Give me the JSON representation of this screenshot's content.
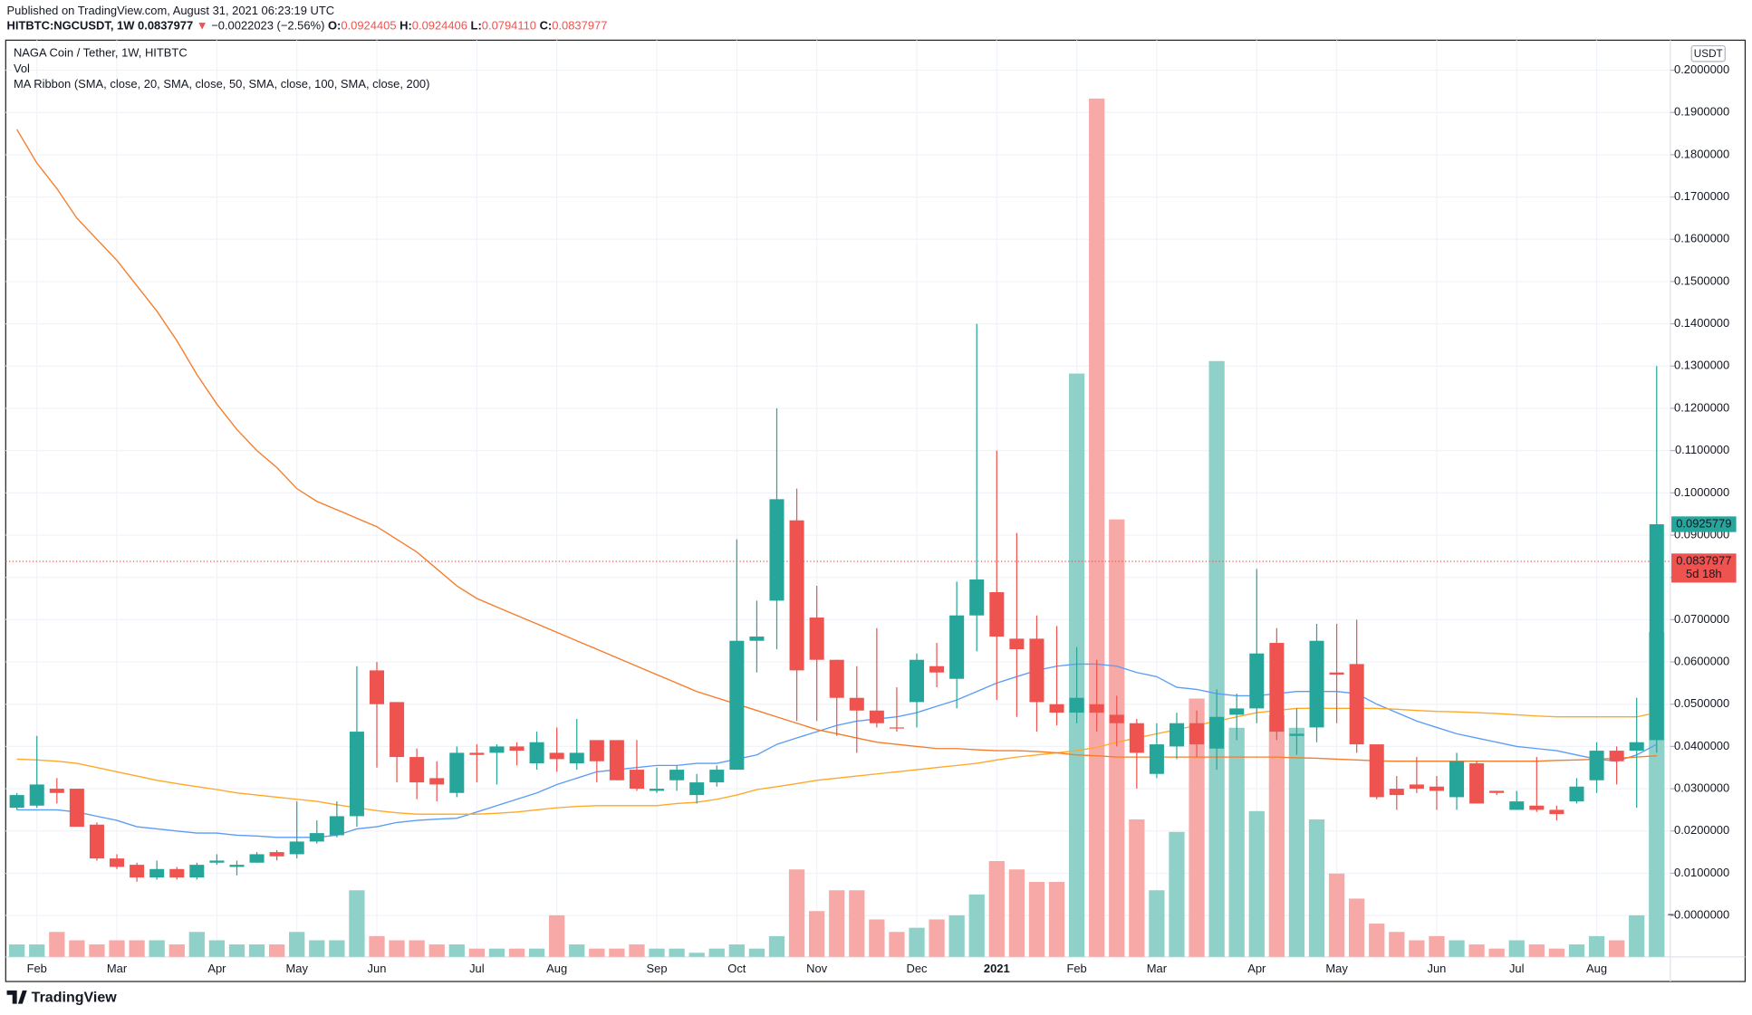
{
  "header": {
    "published": "Published on TradingView.com, August 31, 2021 06:23:19 UTC",
    "symbol": "HITBTC:NGCUSDT, 1W",
    "last": "0.0837977",
    "arrow": "▼",
    "change": "−0.0022023 (−2.56%)",
    "o_label": "O:",
    "o": "0.0924405",
    "h_label": "H:",
    "h": "0.0924406",
    "l_label": "L:",
    "l": "0.0794110",
    "c_label": "C:",
    "c": "0.0837977"
  },
  "footer": {
    "logo": "TradingView"
  },
  "chart_data": {
    "type": "candlestick",
    "title": "NAGA Coin / Tether, 1W, HITBTC",
    "indicators": [
      "Vol",
      "MA Ribbon (SMA, close, 20, SMA, close, 50, SMA, close, 100, SMA, close, 200)"
    ],
    "axis_unit": "USDT",
    "up_color": "#26a69a",
    "down_color": "#ef5350",
    "volume_up_color": "#8fd1c9",
    "volume_down_color": "#f6a9a7",
    "grid": true,
    "categories": [
      null,
      "Feb",
      null,
      null,
      null,
      "Mar",
      null,
      null,
      null,
      null,
      "Apr",
      null,
      null,
      null,
      "May",
      null,
      null,
      null,
      "Jun",
      null,
      null,
      null,
      null,
      "Jul",
      null,
      null,
      null,
      "Aug",
      null,
      null,
      null,
      null,
      "Sep",
      null,
      null,
      null,
      "Oct",
      null,
      null,
      null,
      "Nov",
      null,
      null,
      null,
      null,
      "Dec",
      null,
      null,
      null,
      "2021",
      null,
      null,
      null,
      "Feb",
      null,
      null,
      null,
      "Mar",
      null,
      null,
      null,
      null,
      "Apr",
      null,
      null,
      null,
      "May",
      null,
      null,
      null,
      null,
      "Jun",
      null,
      null,
      null,
      "Jul",
      null,
      null,
      null,
      "Aug",
      null,
      null,
      null
    ],
    "open": [
      0.0255,
      0.026,
      0.03,
      0.03,
      0.0215,
      0.0135,
      0.012,
      0.009,
      0.011,
      0.009,
      0.0125,
      0.0115,
      0.0125,
      0.015,
      0.0145,
      0.0175,
      0.019,
      0.0235,
      0.058,
      0.0505,
      0.0375,
      0.0325,
      0.029,
      0.0385,
      0.0385,
      0.04,
      0.036,
      0.0385,
      0.036,
      0.0415,
      0.0415,
      0.0345,
      0.0295,
      0.032,
      0.0285,
      0.0315,
      0.0345,
      0.065,
      0.0745,
      0.0935,
      0.0705,
      0.0605,
      0.0515,
      0.0485,
      0.0445,
      0.0505,
      0.059,
      0.056,
      0.071,
      0.0765,
      0.0655,
      0.0655,
      0.05,
      0.048,
      0.05,
      0.0475,
      0.0455,
      0.0335,
      0.04,
      0.0455,
      0.0395,
      0.0475,
      0.049,
      0.0645,
      0.0425,
      0.0445,
      0.0575,
      0.0595,
      0.0405,
      0.03,
      0.031,
      0.0305,
      0.028,
      0.036,
      0.0295,
      0.025,
      0.026,
      0.025,
      0.027,
      0.032,
      0.039,
      0.039,
      0.0415
    ],
    "high": [
      0.029,
      0.0425,
      0.0325,
      0.03,
      0.022,
      0.0145,
      0.0125,
      0.013,
      0.0115,
      0.0125,
      0.0145,
      0.013,
      0.015,
      0.0155,
      0.027,
      0.0225,
      0.027,
      0.059,
      0.06,
      0.0505,
      0.0395,
      0.0365,
      0.04,
      0.0405,
      0.0405,
      0.041,
      0.0435,
      0.0445,
      0.0465,
      0.0415,
      0.0415,
      0.0415,
      0.035,
      0.0355,
      0.0335,
      0.0355,
      0.089,
      0.0745,
      0.12,
      0.101,
      0.078,
      0.0605,
      0.059,
      0.068,
      0.054,
      0.062,
      0.0645,
      0.079,
      0.14,
      0.11,
      0.0905,
      0.071,
      0.0685,
      0.0635,
      0.0605,
      0.052,
      0.0465,
      0.0455,
      0.048,
      0.0485,
      0.0535,
      0.0525,
      0.082,
      0.068,
      0.049,
      0.069,
      0.069,
      0.07,
      0.0405,
      0.033,
      0.0375,
      0.033,
      0.0385,
      0.0365,
      0.0295,
      0.0295,
      0.0375,
      0.026,
      0.0325,
      0.041,
      0.04,
      0.0515,
      0.13
    ],
    "low": [
      0.025,
      0.0255,
      0.0265,
      0.021,
      0.013,
      0.011,
      0.008,
      0.0085,
      0.0085,
      0.0085,
      0.012,
      0.0095,
      0.0125,
      0.013,
      0.0135,
      0.017,
      0.0185,
      0.021,
      0.035,
      0.0315,
      0.0275,
      0.027,
      0.028,
      0.0315,
      0.031,
      0.0355,
      0.0345,
      0.034,
      0.0345,
      0.0315,
      0.032,
      0.0295,
      0.029,
      0.0295,
      0.0265,
      0.0305,
      0.0345,
      0.0575,
      0.063,
      0.046,
      0.046,
      0.0425,
      0.0385,
      0.0445,
      0.0435,
      0.0445,
      0.054,
      0.049,
      0.0625,
      0.051,
      0.047,
      0.0435,
      0.045,
      0.0455,
      0.0435,
      0.04,
      0.03,
      0.0325,
      0.037,
      0.0375,
      0.0345,
      0.0415,
      0.0455,
      0.0415,
      0.038,
      0.041,
      0.0455,
      0.0385,
      0.0275,
      0.025,
      0.029,
      0.025,
      0.025,
      0.0265,
      0.0285,
      0.025,
      0.0245,
      0.0225,
      0.0265,
      0.029,
      0.031,
      0.0255,
      0.0385
    ],
    "close": [
      0.0285,
      0.031,
      0.029,
      0.021,
      0.0135,
      0.0115,
      0.009,
      0.011,
      0.009,
      0.012,
      0.013,
      0.012,
      0.0145,
      0.014,
      0.0175,
      0.0195,
      0.0235,
      0.0435,
      0.05,
      0.0375,
      0.0315,
      0.031,
      0.0385,
      0.038,
      0.04,
      0.039,
      0.041,
      0.037,
      0.0385,
      0.0365,
      0.032,
      0.03,
      0.03,
      0.0345,
      0.0315,
      0.0345,
      0.065,
      0.066,
      0.0985,
      0.058,
      0.0605,
      0.0515,
      0.0485,
      0.0455,
      0.0443,
      0.0605,
      0.0575,
      0.071,
      0.0795,
      0.066,
      0.063,
      0.0505,
      0.048,
      0.0515,
      0.048,
      0.0455,
      0.0385,
      0.0405,
      0.0455,
      0.0405,
      0.047,
      0.049,
      0.062,
      0.0435,
      0.043,
      0.065,
      0.057,
      0.0405,
      0.028,
      0.0285,
      0.03,
      0.0295,
      0.0365,
      0.0265,
      0.029,
      0.027,
      0.025,
      0.024,
      0.0305,
      0.039,
      0.0365,
      0.041,
      0.0925779
    ],
    "volume": [
      3,
      3,
      6,
      4,
      3,
      4,
      4,
      4,
      3,
      6,
      4,
      3,
      3,
      3,
      6,
      4,
      4,
      16,
      5,
      4,
      4,
      3,
      3,
      2,
      2,
      2,
      2,
      10,
      3,
      2,
      2,
      3,
      2,
      2,
      1,
      2,
      3,
      2,
      5,
      21,
      11,
      16,
      16,
      9,
      6,
      7,
      9,
      10,
      15,
      23,
      21,
      18,
      18,
      140,
      206,
      105,
      33,
      16,
      30,
      62,
      143,
      55,
      35,
      58,
      55,
      33,
      20,
      14,
      8,
      6,
      4,
      5,
      4,
      3,
      2,
      4,
      3,
      2,
      3,
      5,
      4,
      10,
      78
    ],
    "vlim": [
      0,
      220
    ],
    "ma_lines": [
      {
        "color": "#5b9cf6",
        "values": [
          0.025,
          0.025,
          0.025,
          0.0245,
          0.0235,
          0.0225,
          0.021,
          0.0205,
          0.02,
          0.0195,
          0.0195,
          0.019,
          0.0188,
          0.0185,
          0.0185,
          0.0185,
          0.019,
          0.0205,
          0.021,
          0.022,
          0.0225,
          0.0228,
          0.023,
          0.0245,
          0.026,
          0.0275,
          0.029,
          0.031,
          0.0325,
          0.034,
          0.0345,
          0.035,
          0.0355,
          0.0355,
          0.036,
          0.036,
          0.037,
          0.038,
          0.0405,
          0.042,
          0.0435,
          0.045,
          0.046,
          0.0465,
          0.047,
          0.048,
          0.0495,
          0.051,
          0.053,
          0.055,
          0.0565,
          0.058,
          0.059,
          0.0595,
          0.0595,
          0.059,
          0.0575,
          0.0565,
          0.054,
          0.0535,
          0.0525,
          0.052,
          0.052,
          0.0525,
          0.053,
          0.053,
          0.053,
          0.0525,
          0.05,
          0.048,
          0.046,
          0.0445,
          0.043,
          0.042,
          0.041,
          0.04,
          0.0395,
          0.039,
          0.038,
          0.037,
          0.0365,
          0.038,
          0.0405
        ]
      },
      {
        "color": "#ffa726",
        "values": [
          0.037,
          0.0368,
          0.0365,
          0.036,
          0.035,
          0.034,
          0.033,
          0.032,
          0.0312,
          0.0305,
          0.0298,
          0.029,
          0.0285,
          0.028,
          0.0275,
          0.027,
          0.0262,
          0.0255,
          0.0248,
          0.0243,
          0.024,
          0.024,
          0.024,
          0.024,
          0.0242,
          0.0245,
          0.025,
          0.0255,
          0.0258,
          0.026,
          0.026,
          0.026,
          0.026,
          0.0265,
          0.0268,
          0.0275,
          0.0285,
          0.0298,
          0.0305,
          0.0312,
          0.032,
          0.0325,
          0.033,
          0.0335,
          0.034,
          0.0345,
          0.035,
          0.0355,
          0.036,
          0.0368,
          0.0375,
          0.038,
          0.0385,
          0.039,
          0.0398,
          0.041,
          0.042,
          0.043,
          0.044,
          0.045,
          0.046,
          0.047,
          0.048,
          0.0485,
          0.049,
          0.049,
          0.049,
          0.049,
          0.049,
          0.0488,
          0.0485,
          0.0483,
          0.0482,
          0.048,
          0.0478,
          0.0475,
          0.0472,
          0.047,
          0.047,
          0.047,
          0.047,
          0.047,
          0.048
        ]
      },
      {
        "color": "#f57c2a",
        "values": [
          0.186,
          0.178,
          0.172,
          0.165,
          0.16,
          0.155,
          0.149,
          0.143,
          0.136,
          0.128,
          0.121,
          0.115,
          0.11,
          0.106,
          0.101,
          0.098,
          0.096,
          0.094,
          0.092,
          0.089,
          0.086,
          0.082,
          0.078,
          0.075,
          0.073,
          0.071,
          0.069,
          0.067,
          0.065,
          0.063,
          0.061,
          0.059,
          0.057,
          0.055,
          0.053,
          0.0515,
          0.05,
          0.0485,
          0.047,
          0.0455,
          0.044,
          0.043,
          0.042,
          0.041,
          0.0405,
          0.04,
          0.0395,
          0.0395,
          0.0392,
          0.039,
          0.039,
          0.0388,
          0.0385,
          0.038,
          0.0378,
          0.0375,
          0.0375,
          0.0375,
          0.0375,
          0.0375,
          0.0375,
          0.0375,
          0.0375,
          0.0375,
          0.0373,
          0.0372,
          0.037,
          0.0368,
          0.0366,
          0.0365,
          0.0365,
          0.0365,
          0.0365,
          0.0365,
          0.0365,
          0.0365,
          0.0365,
          0.0367,
          0.0368,
          0.037,
          0.0372,
          0.0375,
          0.0378
        ]
      }
    ],
    "last_close": {
      "value": 0.0925779,
      "label": "0.0925779"
    },
    "current_price": {
      "value": 0.0837977,
      "label": "0.0837977",
      "countdown": "5d 18h"
    },
    "ylim": [
      -0.0098,
      0.2071
    ],
    "yticks": [
      {
        "value": 0,
        "label": "−0.0000000"
      },
      {
        "value": 0.01,
        "label": "0.0100000"
      },
      {
        "value": 0.02,
        "label": "0.0200000"
      },
      {
        "value": 0.03,
        "label": "0.0300000"
      },
      {
        "value": 0.04,
        "label": "0.0400000"
      },
      {
        "value": 0.05,
        "label": "0.0500000"
      },
      {
        "value": 0.06,
        "label": "0.0600000"
      },
      {
        "value": 0.07,
        "label": "0.0700000"
      },
      {
        "value": 0.08,
        "label": "0.0800000"
      },
      {
        "value": 0.09,
        "label": "0.0900000"
      },
      {
        "value": 0.1,
        "label": "0.1000000"
      },
      {
        "value": 0.11,
        "label": "0.1100000"
      },
      {
        "value": 0.12,
        "label": "0.1200000"
      },
      {
        "value": 0.13,
        "label": "0.1300000"
      },
      {
        "value": 0.14,
        "label": "0.1400000"
      },
      {
        "value": 0.15,
        "label": "0.1500000"
      },
      {
        "value": 0.16,
        "label": "0.1600000"
      },
      {
        "value": 0.17,
        "label": "0.1700000"
      },
      {
        "value": 0.18,
        "label": "0.1800000"
      },
      {
        "value": 0.19,
        "label": "0.1900000"
      },
      {
        "value": 0.2,
        "label": "0.2000000"
      }
    ]
  }
}
